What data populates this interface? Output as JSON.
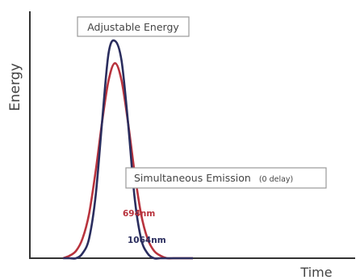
{
  "chart_data": {
    "type": "line",
    "title": "",
    "xlabel": "Time",
    "ylabel": "Energy",
    "xlim": [
      0,
      100
    ],
    "ylim": [
      0,
      100
    ],
    "grid": false,
    "legend": "none",
    "x": [
      10,
      12,
      14,
      16,
      18,
      20,
      22,
      24,
      26,
      28,
      30,
      32,
      34,
      36,
      38,
      40,
      42,
      44,
      46,
      48,
      50
    ],
    "series": [
      {
        "name": "694nm",
        "color": "#b8333d",
        "values": [
          0,
          1,
          3,
          8,
          18,
          35,
          55,
          72,
          79,
          72,
          55,
          35,
          18,
          8,
          3,
          1,
          0,
          0,
          0,
          0,
          0
        ]
      },
      {
        "name": "1064nm",
        "color": "#2a2d5e",
        "values": [
          0,
          0,
          0,
          2,
          8,
          25,
          55,
          83,
          88,
          80,
          55,
          25,
          8,
          2,
          0,
          0,
          0,
          0,
          0,
          0,
          0
        ]
      }
    ],
    "annotations": [
      {
        "text": "Adjustable Energy",
        "boxed": true
      },
      {
        "text": "Simultaneous Emission",
        "suffix": "(0 delay)",
        "boxed": true
      }
    ],
    "series_labels": [
      "694nm",
      "1064nm"
    ]
  },
  "colors": {
    "axis": "#333333",
    "box_border": "#9a9a9a",
    "text": "#444444"
  }
}
